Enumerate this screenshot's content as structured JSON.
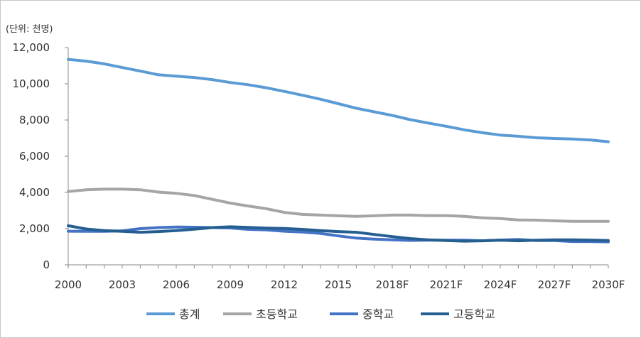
{
  "chart_data": {
    "type": "line",
    "title": "",
    "unit_label": "(단위: 천명)",
    "xlabel": "",
    "ylabel": "",
    "ylim": [
      0,
      12000
    ],
    "yticks": [
      0,
      2000,
      4000,
      6000,
      8000,
      10000,
      12000
    ],
    "ytick_labels": [
      "0",
      "2,000",
      "4,000",
      "6,000",
      "8,000",
      "10,000",
      "12,000"
    ],
    "x": [
      "2000",
      "2001",
      "2002",
      "2003",
      "2004",
      "2005",
      "2006",
      "2007",
      "2008",
      "2009",
      "2010",
      "2011",
      "2012",
      "2013",
      "2014",
      "2015",
      "2016",
      "2017",
      "2018F",
      "2019F",
      "2020F",
      "2021F",
      "2022F",
      "2023F",
      "2024F",
      "2025F",
      "2026F",
      "2027F",
      "2028F",
      "2029F",
      "2030F"
    ],
    "xtick_labels": [
      "2000",
      "2003",
      "2006",
      "2009",
      "2012",
      "2015",
      "2018F",
      "2021F",
      "2024F",
      "2027F",
      "2030F"
    ],
    "grid": false,
    "legend_position": "bottom",
    "series": [
      {
        "name": "총계",
        "color": "#5b9bd5",
        "values": [
          11350,
          11250,
          11100,
          10900,
          10700,
          10500,
          10420,
          10350,
          10230,
          10070,
          9950,
          9780,
          9580,
          9370,
          9150,
          8900,
          8650,
          8450,
          8250,
          8020,
          7830,
          7650,
          7460,
          7300,
          7170,
          7100,
          7020,
          6980,
          6950,
          6900,
          6800
        ]
      },
      {
        "name": "초등학교",
        "color": "#a5a5a5",
        "values": [
          4050,
          4150,
          4180,
          4180,
          4150,
          4020,
          3950,
          3830,
          3620,
          3410,
          3250,
          3100,
          2900,
          2790,
          2750,
          2710,
          2680,
          2710,
          2750,
          2750,
          2720,
          2720,
          2680,
          2600,
          2560,
          2480,
          2470,
          2430,
          2400,
          2400,
          2400
        ]
      },
      {
        "name": "중학교",
        "color": "#4472c4",
        "values": [
          1860,
          1850,
          1850,
          1880,
          2000,
          2060,
          2090,
          2080,
          2060,
          2040,
          1960,
          1930,
          1860,
          1810,
          1740,
          1600,
          1480,
          1420,
          1380,
          1350,
          1370,
          1360,
          1360,
          1330,
          1370,
          1400,
          1340,
          1340,
          1290,
          1290,
          1270
        ]
      },
      {
        "name": "고등학교",
        "color": "#255e91",
        "values": [
          2160,
          1980,
          1890,
          1850,
          1800,
          1840,
          1890,
          1970,
          2060,
          2100,
          2070,
          2030,
          2010,
          1960,
          1890,
          1840,
          1800,
          1680,
          1560,
          1450,
          1380,
          1340,
          1310,
          1330,
          1360,
          1330,
          1360,
          1380,
          1380,
          1370,
          1340
        ]
      }
    ]
  }
}
